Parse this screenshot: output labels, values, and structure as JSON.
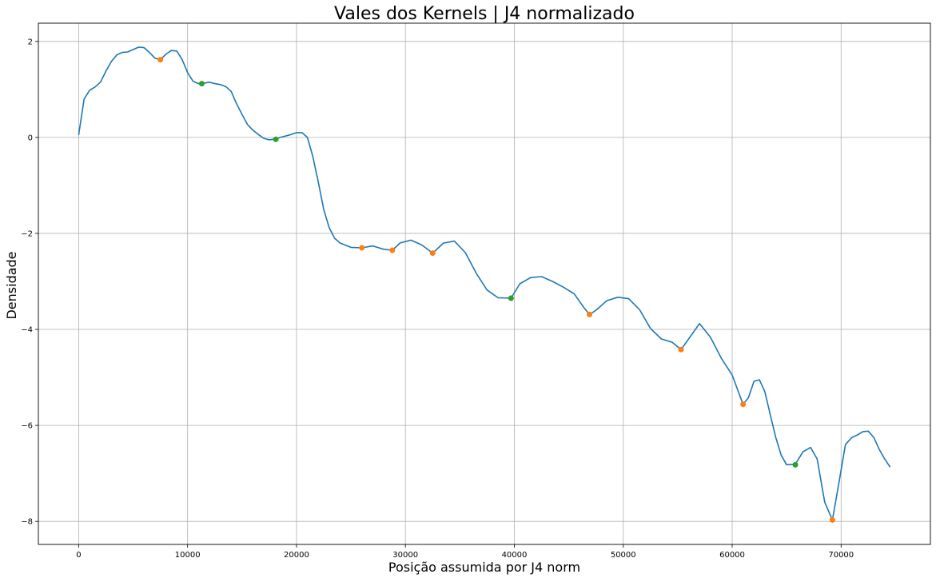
{
  "chart_data": {
    "type": "line",
    "title": "Vales dos Kernels | J4 normalizado",
    "xlabel": "Posição assumida por J4 norm",
    "ylabel": "Densidade",
    "xlim": [
      -3700,
      78200
    ],
    "ylim": [
      -8.48,
      2.38
    ],
    "grid": true,
    "x_ticks": [
      0,
      10000,
      20000,
      30000,
      40000,
      50000,
      60000,
      70000
    ],
    "x_tick_labels": [
      "0",
      "10000",
      "20000",
      "30000",
      "40000",
      "50000",
      "60000",
      "70000"
    ],
    "y_ticks": [
      2,
      0,
      -2,
      -4,
      -6,
      -8
    ],
    "y_tick_labels": [
      "2",
      "0",
      "−2",
      "−4",
      "−6",
      "−8"
    ],
    "colors": {
      "line": "#1f77b4",
      "orange_points": "#ff7f0e",
      "green_points": "#2ca02c",
      "grid": "#b0b0b0"
    },
    "series": [
      {
        "kind": "line",
        "x": [
          0,
          500,
          1000,
          1500,
          2000,
          2500,
          3000,
          3500,
          4000,
          4500,
          5000,
          5500,
          6000,
          6500,
          7000,
          7500,
          8000,
          8500,
          9000,
          9500,
          10000,
          10500,
          11000,
          11300,
          12000,
          12500,
          13000,
          13500,
          14000,
          14500,
          15000,
          15500,
          16000,
          16500,
          17000,
          17500,
          18100,
          18500,
          19000,
          19500,
          20000,
          20500,
          21000,
          21500,
          22000,
          22500,
          23000,
          23500,
          24000,
          25000,
          26000,
          27000,
          28000,
          28800,
          29500,
          30500,
          31500,
          32500,
          33500,
          34500,
          35500,
          36500,
          37500,
          38500,
          39700,
          40500,
          41500,
          42500,
          43500,
          44500,
          45500,
          46400,
          46900,
          47500,
          48500,
          49500,
          50500,
          51500,
          52500,
          53500,
          54500,
          55300,
          56000,
          57000,
          58000,
          59000,
          60000,
          61000,
          61500,
          62000,
          62500,
          63000,
          63500,
          64000,
          64500,
          65000,
          65800,
          66500,
          67200,
          67800,
          68500,
          69200,
          69800,
          70400,
          71000,
          71500,
          72000,
          72500,
          73000,
          73500,
          74000,
          74500
        ],
        "y": [
          0.05,
          0.8,
          0.98,
          1.05,
          1.15,
          1.38,
          1.58,
          1.72,
          1.77,
          1.78,
          1.83,
          1.88,
          1.87,
          1.77,
          1.65,
          1.62,
          1.73,
          1.81,
          1.8,
          1.62,
          1.35,
          1.17,
          1.12,
          1.12,
          1.15,
          1.12,
          1.1,
          1.06,
          0.96,
          0.7,
          0.48,
          0.27,
          0.15,
          0.06,
          -0.02,
          -0.05,
          -0.03,
          0.0,
          0.03,
          0.06,
          0.1,
          0.1,
          0.0,
          -0.4,
          -0.93,
          -1.5,
          -1.88,
          -2.1,
          -2.2,
          -2.29,
          -2.3,
          -2.26,
          -2.33,
          -2.35,
          -2.2,
          -2.14,
          -2.24,
          -2.41,
          -2.2,
          -2.16,
          -2.4,
          -2.83,
          -3.18,
          -3.34,
          -3.35,
          -3.05,
          -2.92,
          -2.9,
          -3.0,
          -3.12,
          -3.26,
          -3.55,
          -3.69,
          -3.6,
          -3.4,
          -3.33,
          -3.36,
          -3.59,
          -3.98,
          -4.2,
          -4.27,
          -4.42,
          -4.2,
          -3.88,
          -4.16,
          -4.6,
          -4.95,
          -5.56,
          -5.42,
          -5.08,
          -5.05,
          -5.3,
          -5.78,
          -6.25,
          -6.62,
          -6.82,
          -6.81,
          -6.55,
          -6.46,
          -6.7,
          -7.6,
          -7.97,
          -7.2,
          -6.4,
          -6.25,
          -6.2,
          -6.13,
          -6.12,
          -6.25,
          -6.5,
          -6.7,
          -6.87
        ]
      },
      {
        "kind": "points",
        "x": [
          7500,
          26000,
          28800,
          32500,
          46900,
          55300,
          61000,
          69200
        ],
        "y": [
          1.62,
          -2.3,
          -2.35,
          -2.41,
          -3.69,
          -4.42,
          -5.56,
          -7.97
        ]
      },
      {
        "kind": "points",
        "x": [
          11300,
          18100,
          39700,
          65800
        ],
        "y": [
          1.12,
          -0.04,
          -3.35,
          -6.82
        ]
      }
    ]
  }
}
